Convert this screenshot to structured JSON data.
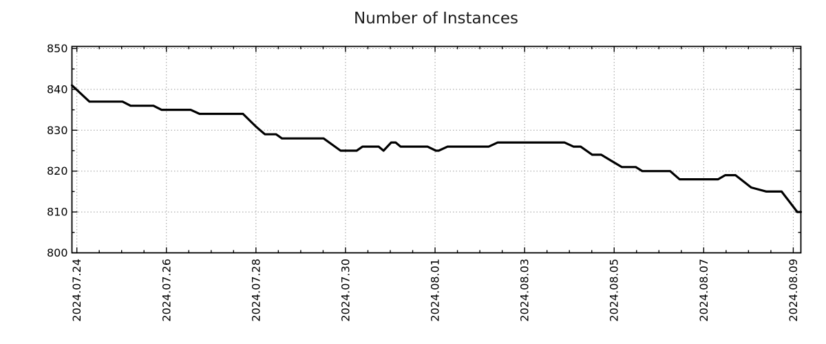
{
  "chart_data": {
    "type": "line",
    "title": "Number of Instances",
    "xlabel": "",
    "ylabel": "",
    "grid": true,
    "legend": "none",
    "ylim": [
      800,
      850
    ],
    "y_ticks": [
      800,
      810,
      820,
      830,
      840,
      850
    ],
    "y_minor_ticks": [
      805,
      815,
      825,
      835,
      845
    ],
    "xlim_days": [
      -0.11,
      16.17
    ],
    "x_minor_step_days": 0.5,
    "x_ticks": [
      {
        "day": 0,
        "label": "2024.07.24"
      },
      {
        "day": 2,
        "label": "2024.07.26"
      },
      {
        "day": 4,
        "label": "2024.07.28"
      },
      {
        "day": 6,
        "label": "2024.07.30"
      },
      {
        "day": 8,
        "label": "2024.08.01"
      },
      {
        "day": 10,
        "label": "2024.08.03"
      },
      {
        "day": 12,
        "label": "2024.08.05"
      },
      {
        "day": 14,
        "label": "2024.08.07"
      },
      {
        "day": 16,
        "label": "2024.08.09"
      }
    ],
    "series": [
      {
        "name": "instances",
        "color": "#000000",
        "points_day_value": [
          [
            -0.11,
            841
          ],
          [
            0.28,
            837
          ],
          [
            1.02,
            837
          ],
          [
            1.2,
            836
          ],
          [
            1.71,
            836
          ],
          [
            1.89,
            835
          ],
          [
            2.54,
            835
          ],
          [
            2.74,
            834
          ],
          [
            3.71,
            834
          ],
          [
            3.99,
            831
          ],
          [
            4.2,
            829
          ],
          [
            4.45,
            829
          ],
          [
            4.58,
            828
          ],
          [
            5.51,
            828
          ],
          [
            5.89,
            825
          ],
          [
            6.25,
            825
          ],
          [
            6.38,
            826
          ],
          [
            6.74,
            826
          ],
          [
            6.85,
            825
          ],
          [
            7.02,
            827
          ],
          [
            7.12,
            827
          ],
          [
            7.23,
            826
          ],
          [
            7.83,
            826
          ],
          [
            8.02,
            825
          ],
          [
            8.08,
            825
          ],
          [
            8.28,
            826
          ],
          [
            9.2,
            826
          ],
          [
            9.4,
            827
          ],
          [
            10.89,
            827
          ],
          [
            11.09,
            826
          ],
          [
            11.25,
            826
          ],
          [
            11.51,
            824
          ],
          [
            11.71,
            824
          ],
          [
            12.17,
            821
          ],
          [
            12.48,
            821
          ],
          [
            12.63,
            820
          ],
          [
            13.25,
            820
          ],
          [
            13.46,
            818
          ],
          [
            14.32,
            818
          ],
          [
            14.48,
            819
          ],
          [
            14.71,
            819
          ],
          [
            15.06,
            816
          ],
          [
            15.4,
            815
          ],
          [
            15.74,
            815
          ],
          [
            16.09,
            810
          ],
          [
            16.17,
            810
          ]
        ]
      }
    ]
  },
  "colors": {
    "line": "#000000",
    "grid": "#999999",
    "border": "#000000",
    "tick": "#000000",
    "tick_label": "#000000",
    "title": "#1a1a1a",
    "background": "#ffffff"
  }
}
